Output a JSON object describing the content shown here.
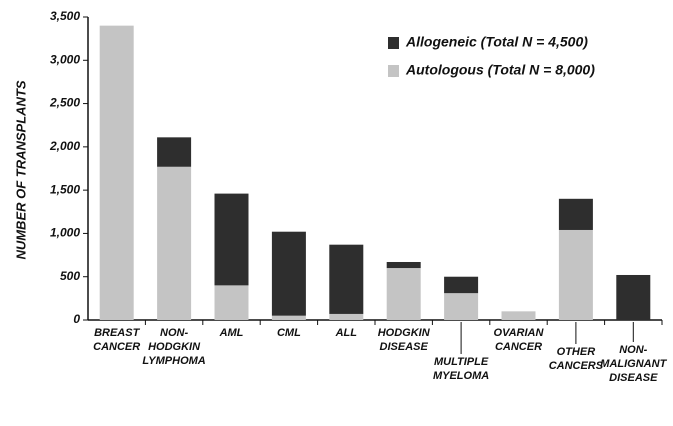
{
  "chart_data": {
    "type": "bar",
    "stacked": true,
    "ylabel": "NUMBER OF TRANSPLANTS",
    "categories": [
      [
        "BREAST",
        "CANCER"
      ],
      [
        "NON-",
        "HODGKIN",
        "LYMPHOMA"
      ],
      [
        "AML"
      ],
      [
        "CML"
      ],
      [
        "ALL"
      ],
      [
        "HODGKIN",
        "DISEASE"
      ],
      [
        "MULTIPLE",
        "MYELOMA"
      ],
      [
        "OVARIAN",
        "CANCER"
      ],
      [
        "OTHER",
        "CANCERS"
      ],
      [
        "NON-",
        "MALIGNANT",
        "DISEASE"
      ]
    ],
    "series": [
      {
        "name": "Autologous (Total N = 8,000)",
        "color": "#c4c4c4",
        "values": [
          3400,
          1770,
          400,
          50,
          70,
          600,
          310,
          100,
          1040,
          0
        ]
      },
      {
        "name": "Allogeneic (Total N = 4,500)",
        "color": "#2e2e2e",
        "values": [
          0,
          340,
          1060,
          970,
          800,
          70,
          190,
          0,
          360,
          520
        ]
      }
    ],
    "ylim": [
      0,
      3500
    ],
    "yticks": [
      0,
      500,
      {
        "value": 1000,
        "label": "1,000"
      },
      {
        "value": 1500,
        "label": "1,500"
      },
      {
        "value": 2000,
        "label": "2,000"
      },
      {
        "value": 2500,
        "label": "2,500"
      },
      {
        "value": 3000,
        "label": "3,000"
      },
      {
        "value": 3500,
        "label": "3,500"
      }
    ],
    "legend": "upper right"
  }
}
